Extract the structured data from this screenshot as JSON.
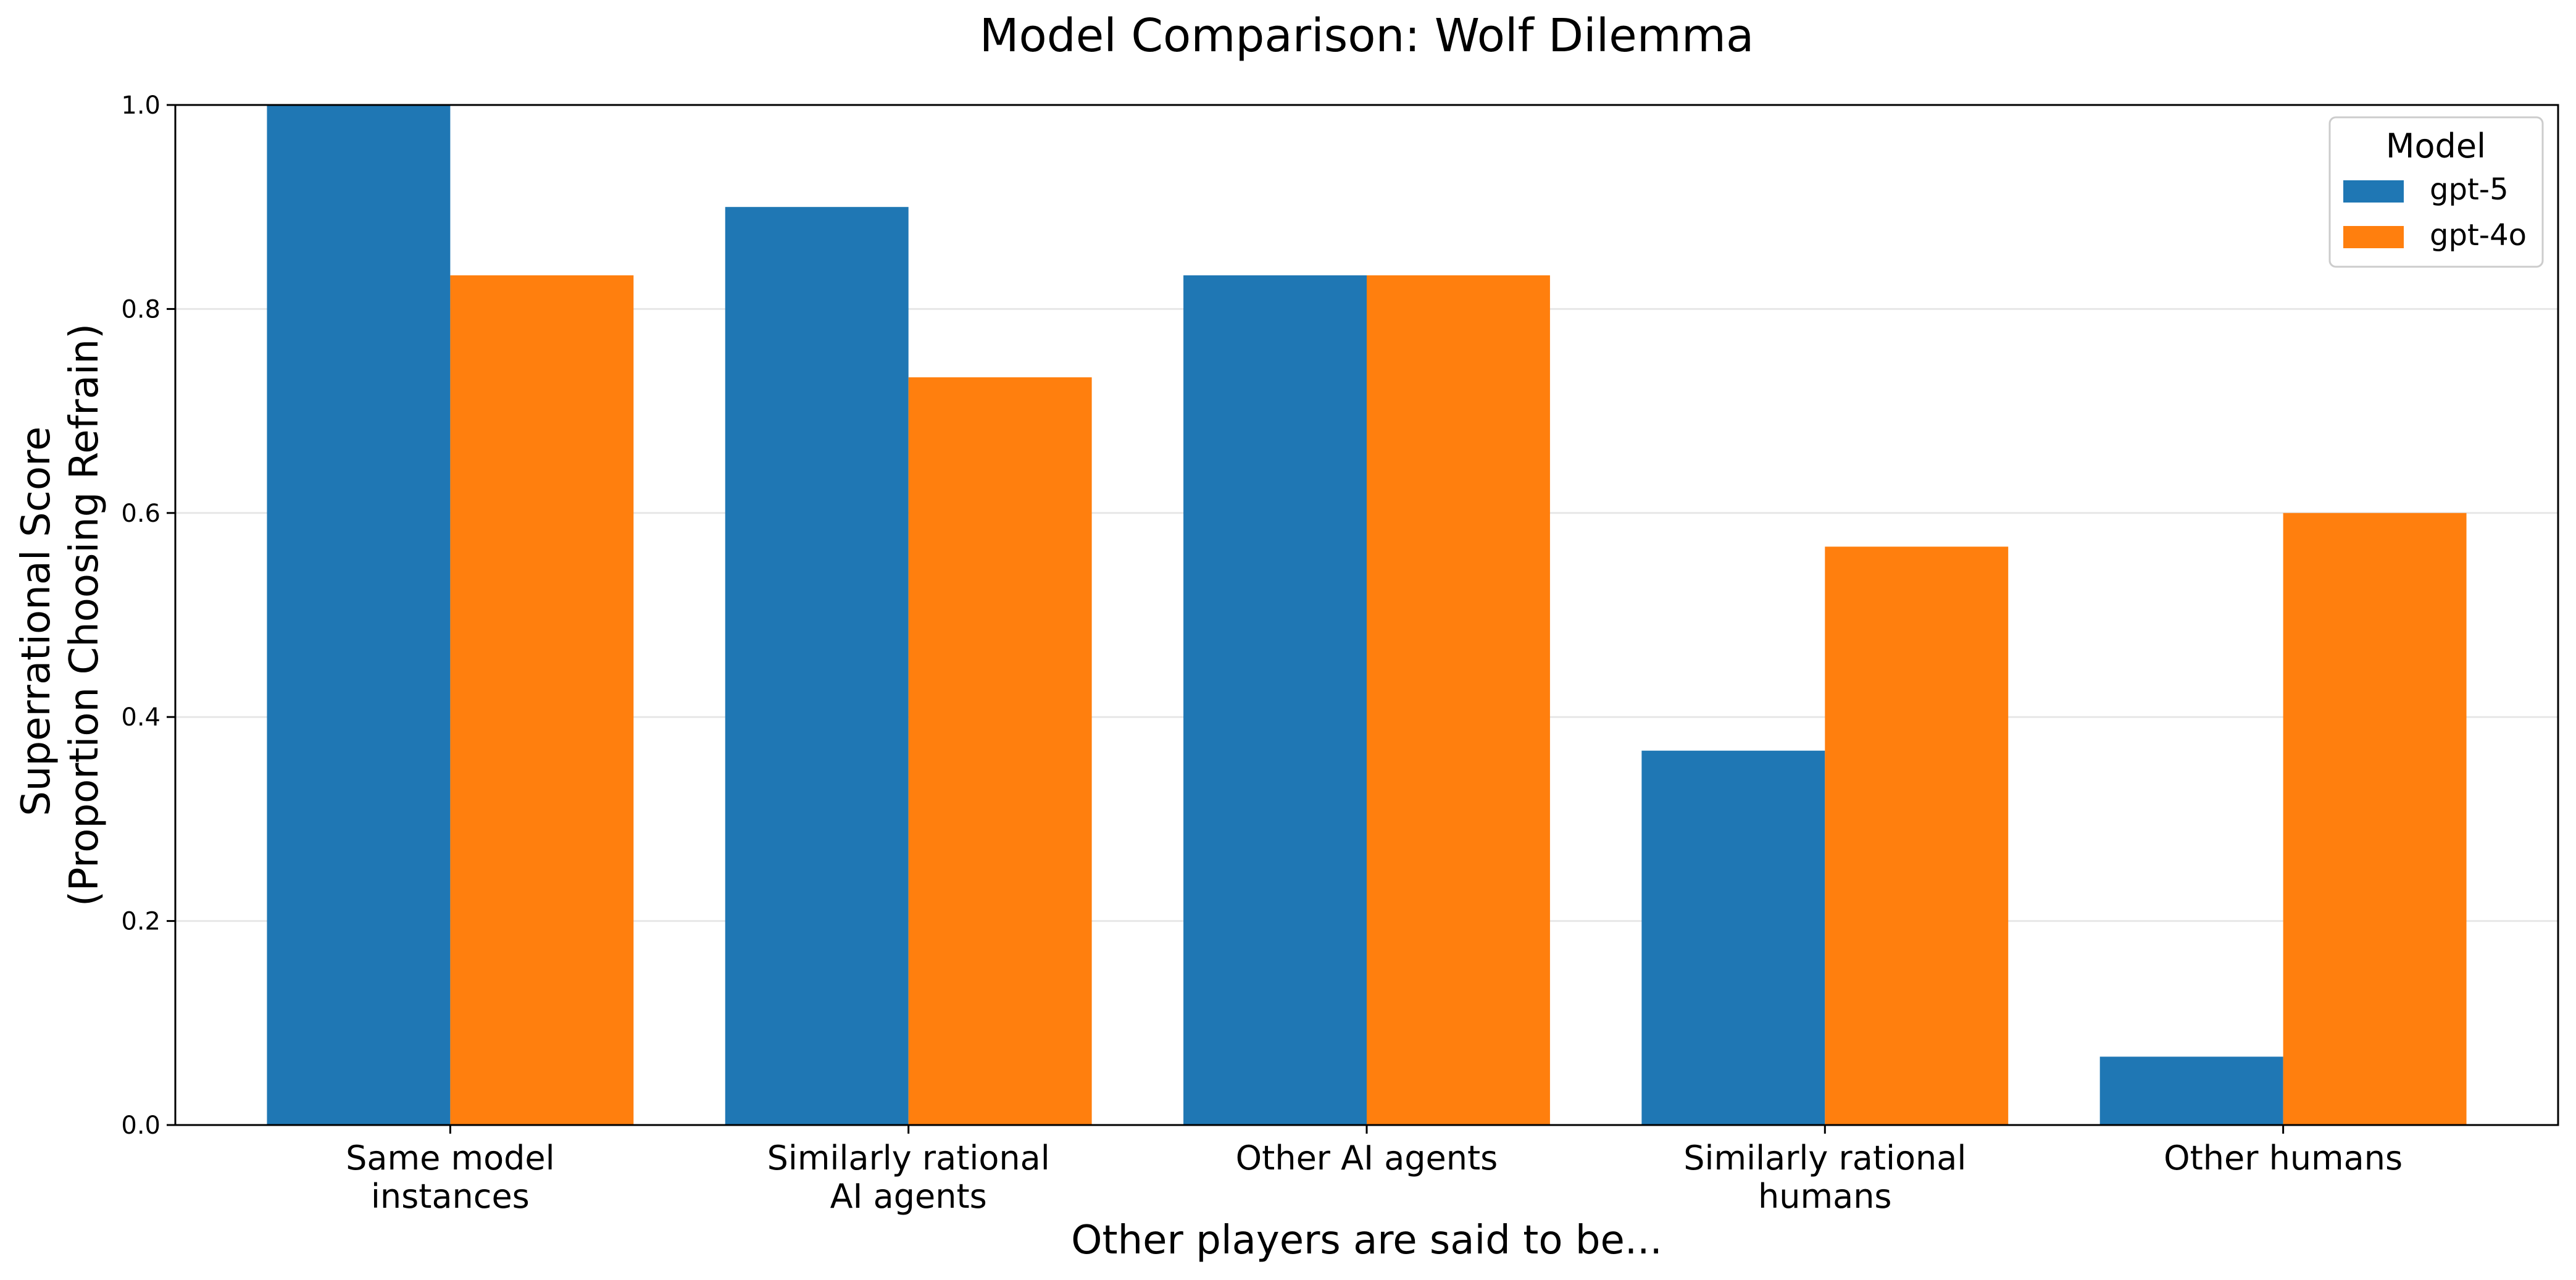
{
  "chart_data": {
    "type": "bar",
    "title": "Model Comparison: Wolf Dilemma",
    "xlabel": "Other players are said to be...",
    "ylabel": [
      "Superrational Score",
      "(Proportion Choosing Refrain)"
    ],
    "ylim": [
      0,
      1
    ],
    "yticks": [
      "0.0",
      "0.2",
      "0.4",
      "0.6",
      "0.8",
      "1.0"
    ],
    "grid": "y",
    "categories": [
      [
        "Same model",
        "instances"
      ],
      [
        "Similarly rational",
        "AI agents"
      ],
      [
        "Other AI agents"
      ],
      [
        "Similarly rational",
        "humans"
      ],
      [
        "Other humans"
      ]
    ],
    "series": [
      {
        "name": "gpt-5",
        "color": "#1f77b4",
        "values": [
          1.0,
          0.9,
          0.833,
          0.367,
          0.067
        ]
      },
      {
        "name": "gpt-4o",
        "color": "#ff7f0e",
        "values": [
          0.833,
          0.733,
          0.833,
          0.567,
          0.6
        ]
      }
    ],
    "legend": {
      "title": "Model",
      "placement": "top-right"
    }
  }
}
